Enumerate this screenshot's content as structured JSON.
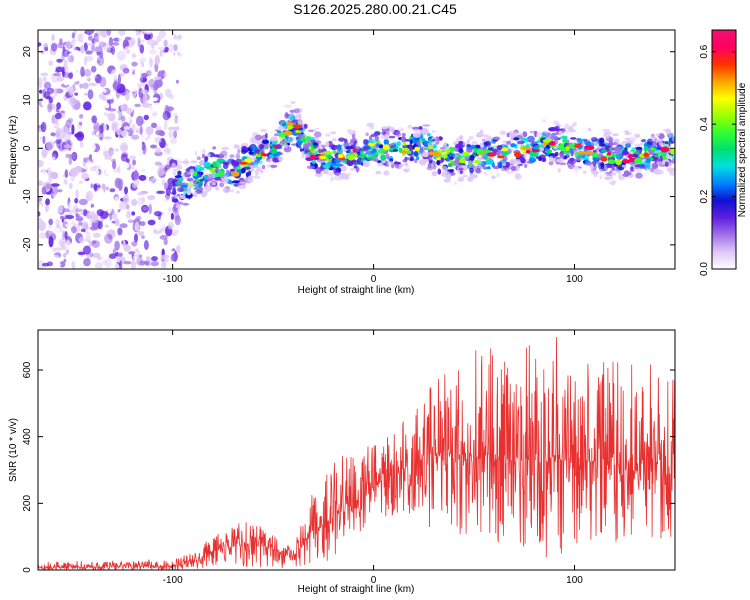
{
  "figure": {
    "title": "S126.2025.280.00.21.C45"
  },
  "chart_data": [
    {
      "type": "heatmap",
      "title": "",
      "xlabel": "Height of straight line (km)",
      "ylabel": "Frequency (Hz)",
      "xlim": [
        -167,
        150
      ],
      "ylim": [
        -25,
        24.5
      ],
      "xticks": [
        -100,
        0,
        100
      ],
      "yticks": [
        -20,
        -10,
        0,
        10,
        20
      ],
      "xtick_labels": [
        "-100",
        "0",
        "100"
      ],
      "ytick_labels": [
        "-20",
        "-10",
        "0",
        "10",
        "20"
      ],
      "noise_region_x": [
        -167,
        -97
      ],
      "ridge": {
        "x": [
          -100,
          -90,
          -80,
          -70,
          -60,
          -50,
          -40,
          -35,
          -30,
          -20,
          -10,
          0,
          10,
          20,
          25,
          30,
          40,
          50,
          60,
          70,
          80,
          90,
          100,
          110,
          120,
          130,
          140,
          150
        ],
        "freq": [
          -8,
          -7,
          -4,
          -5,
          -2,
          0,
          5,
          2,
          -1,
          -2,
          -1,
          0,
          0,
          0,
          2,
          -1,
          -2,
          -2,
          -1,
          -1,
          0,
          1,
          0,
          -1,
          -2,
          -2,
          -1,
          0
        ]
      },
      "colorbar": {
        "label": "Normalized spectral amplitude",
        "range": [
          0.0,
          0.66
        ],
        "ticks": [
          0.0,
          0.2,
          0.4,
          0.6
        ],
        "tick_labels": [
          "0.0",
          "0.2",
          "0.4",
          "0.6"
        ],
        "colormap": [
          "#ffffff",
          "#e0c8f8",
          "#a070e8",
          "#6020e0",
          "#1010d0",
          "#0080ff",
          "#00e0e0",
          "#00e070",
          "#30ff30",
          "#a0ff00",
          "#ffff00",
          "#ffa000",
          "#ff3000",
          "#ff0060",
          "#f01070"
        ]
      }
    },
    {
      "type": "line",
      "title": "",
      "xlabel": "Height of straight line (km)",
      "ylabel": "SNR (10 * v/v)",
      "xlim": [
        -167,
        150
      ],
      "ylim": [
        0,
        720
      ],
      "xticks": [
        -100,
        0,
        100
      ],
      "yticks": [
        0,
        200,
        400,
        600
      ],
      "xtick_labels": [
        "-100",
        "0",
        "100"
      ],
      "ytick_labels": [
        "0",
        "200",
        "400",
        "600"
      ],
      "color": "#e83030",
      "envelope": {
        "x": [
          -167,
          -100,
          -90,
          -80,
          -70,
          -60,
          -50,
          -40,
          -30,
          -20,
          -10,
          0,
          10,
          20,
          30,
          40,
          60,
          80,
          90,
          100,
          120,
          140,
          150
        ],
        "mean": [
          8,
          12,
          25,
          55,
          75,
          80,
          60,
          40,
          120,
          160,
          200,
          250,
          290,
          320,
          350,
          350,
          330,
          330,
          340,
          330,
          320,
          320,
          300
        ],
        "max": [
          25,
          30,
          55,
          110,
          140,
          150,
          110,
          70,
          250,
          320,
          370,
          410,
          450,
          500,
          560,
          620,
          700,
          690,
          710,
          620,
          640,
          620,
          600
        ],
        "min": [
          0,
          0,
          0,
          5,
          10,
          10,
          5,
          5,
          0,
          40,
          100,
          130,
          150,
          160,
          120,
          100,
          80,
          50,
          30,
          60,
          80,
          80,
          100
        ]
      }
    }
  ]
}
